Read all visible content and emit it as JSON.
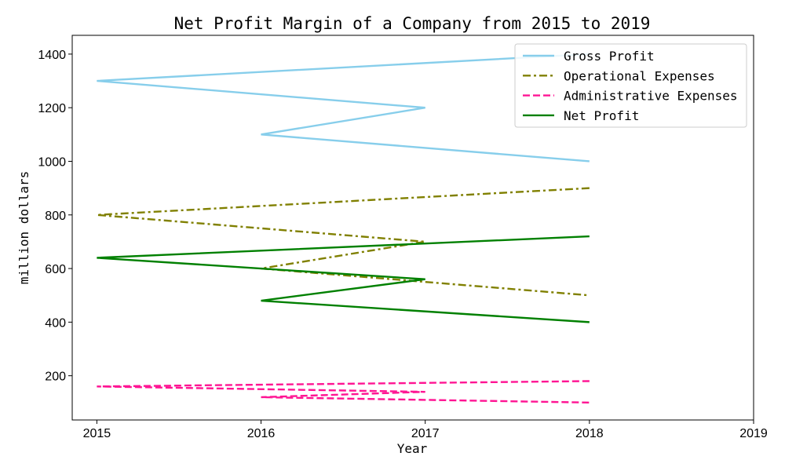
{
  "chart_data": {
    "type": "line",
    "title": "Net Profit Margin of a Company from 2015 to 2019",
    "xlabel": "Year",
    "ylabel": "million dollars",
    "xlim": [
      2014.85,
      2019
    ],
    "ylim": [
      35,
      1470
    ],
    "xticks": [
      2015,
      2016,
      2017,
      2018,
      2019
    ],
    "yticks": [
      200,
      400,
      600,
      800,
      1000,
      1200,
      1400
    ],
    "grid": false,
    "legend_position": "top-right",
    "series": [
      {
        "name": "Gross Profit",
        "color": "#87ceeb",
        "dash": "solid",
        "points": [
          [
            2018,
            1400
          ],
          [
            2015,
            1300
          ],
          [
            2017,
            1200
          ],
          [
            2016,
            1100
          ],
          [
            2018,
            1000
          ]
        ]
      },
      {
        "name": "Operational Expenses",
        "color": "#808000",
        "dash": "dashdot",
        "points": [
          [
            2018,
            900
          ],
          [
            2015,
            800
          ],
          [
            2017,
            700
          ],
          [
            2016,
            600
          ],
          [
            2018,
            500
          ]
        ]
      },
      {
        "name": "Administrative Expenses",
        "color": "#ff1493",
        "dash": "dashed",
        "points": [
          [
            2018,
            180
          ],
          [
            2015,
            160
          ],
          [
            2017,
            140
          ],
          [
            2016,
            120
          ],
          [
            2018,
            100
          ]
        ]
      },
      {
        "name": "Net Profit",
        "color": "#008000",
        "dash": "solid",
        "points": [
          [
            2018,
            720
          ],
          [
            2015,
            640
          ],
          [
            2017,
            560
          ],
          [
            2016,
            480
          ],
          [
            2018,
            400
          ]
        ]
      }
    ]
  }
}
